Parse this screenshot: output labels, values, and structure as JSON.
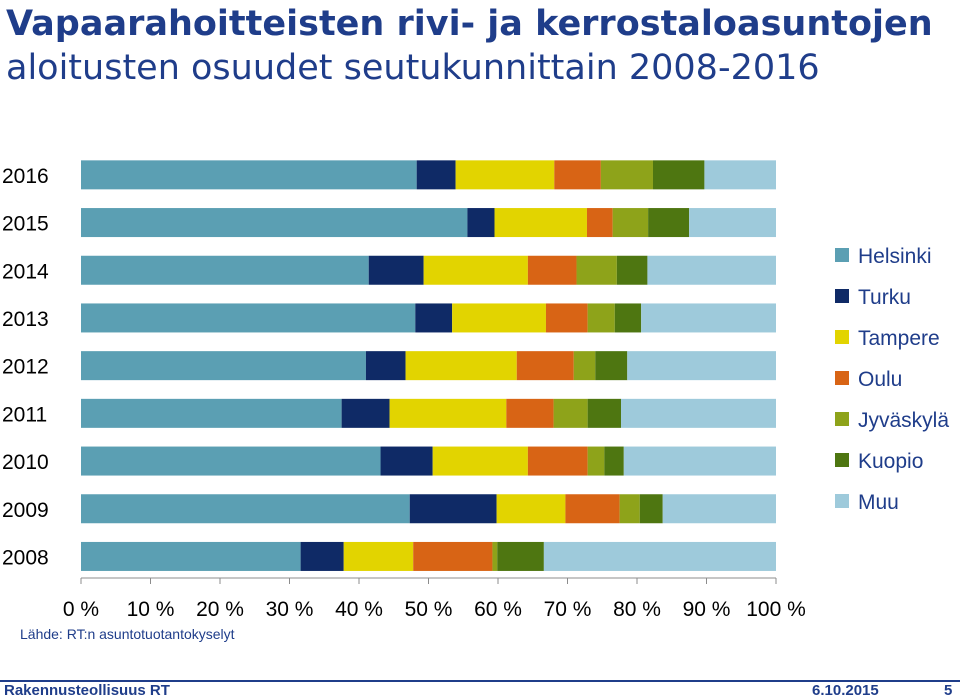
{
  "slide": {
    "title_line1": "Vapaarahoitteisten rivi- ja kerrostaloasuntojen",
    "title_line2": "aloitusten osuudet seutukunnittain 2008-2016",
    "source": "Lähde: RT:n asuntotuotantokyselyt",
    "footer_org": "Rakennusteollisuus RT",
    "footer_date": "6.10.2015",
    "page_number": "5"
  },
  "chart_data": {
    "type": "bar",
    "orientation": "horizontal",
    "stacking": "percent",
    "title": "Vapaarahoitteisten rivi- ja kerrostaloasuntojen aloitusten osuudet seutukunnittain 2008-2016",
    "categories": [
      "2016",
      "2015",
      "2014",
      "2013",
      "2012",
      "2011",
      "2010",
      "2009",
      "2008"
    ],
    "x_ticks": [
      "0 %",
      "10 %",
      "20 %",
      "30 %",
      "40 %",
      "50 %",
      "60 %",
      "70 %",
      "80 %",
      "90 %",
      "100 %"
    ],
    "xlim": [
      0,
      100
    ],
    "legend_position": "right",
    "series": [
      {
        "name": "Helsinki",
        "color": "#5b9fb3",
        "values": [
          48.3,
          55.6,
          41.4,
          48.1,
          41.0,
          37.5,
          43.1,
          47.3,
          31.6
        ]
      },
      {
        "name": "Turku",
        "color": "#0f2a66",
        "values": [
          5.6,
          3.9,
          7.9,
          5.3,
          5.7,
          6.9,
          7.5,
          12.5,
          6.2
        ]
      },
      {
        "name": "Tampere",
        "color": "#e2d400",
        "values": [
          14.2,
          13.3,
          15.0,
          13.5,
          16.0,
          16.8,
          13.7,
          9.9,
          10.0
        ]
      },
      {
        "name": "Oulu",
        "color": "#d86415",
        "values": [
          6.7,
          3.7,
          7.0,
          6.0,
          8.2,
          6.8,
          8.6,
          7.8,
          11.4
        ]
      },
      {
        "name": "Jyväskylä",
        "color": "#8ea31a",
        "values": [
          7.5,
          5.1,
          5.8,
          3.9,
          3.1,
          4.9,
          2.4,
          2.9,
          0.7
        ]
      },
      {
        "name": "Kuopio",
        "color": "#4e7611",
        "values": [
          7.4,
          5.9,
          4.4,
          3.8,
          4.6,
          4.8,
          2.8,
          3.3,
          6.7
        ]
      },
      {
        "name": "Muu",
        "color": "#9ecadb",
        "values": [
          10.3,
          12.5,
          18.5,
          19.4,
          21.4,
          22.3,
          21.9,
          16.3,
          33.4
        ]
      }
    ]
  }
}
